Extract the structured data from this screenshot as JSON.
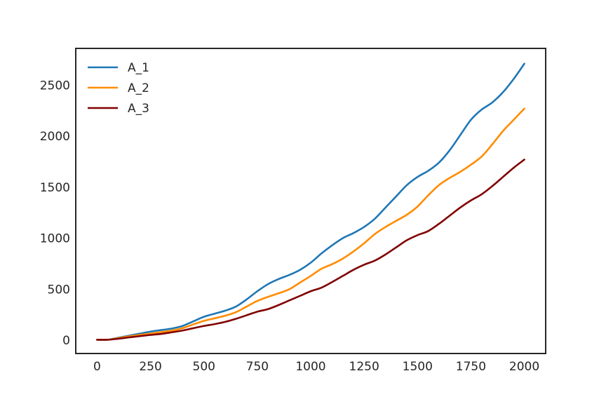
{
  "chart_data": {
    "type": "line",
    "title": "",
    "xlabel": "",
    "ylabel": "",
    "xlim": [
      -100,
      2100
    ],
    "ylim": [
      -130,
      2860
    ],
    "x_ticks": [
      0,
      250,
      500,
      750,
      1000,
      1250,
      1500,
      1750,
      2000
    ],
    "y_ticks": [
      0,
      500,
      1000,
      1500,
      2000,
      2500
    ],
    "grid": false,
    "legend_position": "upper-left",
    "x": [
      0,
      50,
      100,
      150,
      200,
      250,
      300,
      350,
      400,
      450,
      500,
      550,
      600,
      650,
      700,
      750,
      800,
      850,
      900,
      950,
      1000,
      1050,
      1100,
      1150,
      1200,
      1250,
      1300,
      1350,
      1400,
      1450,
      1500,
      1550,
      1600,
      1650,
      1700,
      1750,
      1800,
      1850,
      1900,
      1950,
      2000
    ],
    "series": [
      {
        "name": "A_1",
        "color": "#1f77b4",
        "values": [
          5,
          5,
          25,
          45,
          65,
          85,
          100,
          115,
          140,
          185,
          230,
          260,
          290,
          330,
          400,
          480,
          550,
          600,
          640,
          690,
          760,
          850,
          930,
          1000,
          1050,
          1110,
          1190,
          1300,
          1410,
          1520,
          1600,
          1660,
          1740,
          1860,
          2010,
          2160,
          2260,
          2330,
          2430,
          2560,
          2710
        ]
      },
      {
        "name": "A_2",
        "color": "#ff8c00",
        "values": [
          5,
          5,
          22,
          38,
          52,
          66,
          80,
          95,
          118,
          155,
          190,
          215,
          240,
          275,
          330,
          385,
          425,
          460,
          500,
          565,
          630,
          700,
          745,
          800,
          870,
          950,
          1040,
          1110,
          1170,
          1230,
          1310,
          1420,
          1520,
          1590,
          1650,
          1720,
          1800,
          1920,
          2050,
          2160,
          2270
        ]
      },
      {
        "name": "A_3",
        "color": "#800000",
        "values": [
          5,
          5,
          15,
          28,
          40,
          52,
          62,
          78,
          95,
          118,
          140,
          158,
          180,
          210,
          245,
          280,
          305,
          345,
          390,
          435,
          480,
          515,
          570,
          630,
          690,
          740,
          780,
          840,
          910,
          980,
          1030,
          1070,
          1140,
          1220,
          1300,
          1370,
          1430,
          1510,
          1600,
          1690,
          1770
        ]
      }
    ]
  }
}
